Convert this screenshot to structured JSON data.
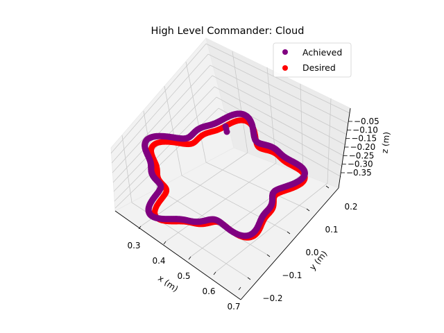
{
  "title": "High Level Commander: Cloud",
  "chart_data": {
    "type": "scatter",
    "projection": "3d",
    "title": "High Level Commander: Cloud",
    "xlabel": "x (m)",
    "ylabel": "y (m)",
    "zlabel": "z (m)",
    "xlim": [
      0.25,
      0.72
    ],
    "ylim": [
      -0.23,
      0.27
    ],
    "zlim": [
      -0.37,
      -0.03
    ],
    "x_ticks": [
      "0.3",
      "0.4",
      "0.5",
      "0.6",
      "0.7"
    ],
    "y_ticks": [
      "−0.2",
      "−0.1",
      "0.0",
      "0.1",
      "0.2"
    ],
    "z_ticks": [
      "−0.05",
      "−0.10",
      "−0.15",
      "−0.20",
      "−0.25",
      "−0.30",
      "−0.35"
    ],
    "grid": true,
    "legend_position": "top-right",
    "series": [
      {
        "name": "Achieved",
        "color": "#800080",
        "shape": "cloud-loop"
      },
      {
        "name": "Desired",
        "color": "#ff0000",
        "shape": "cloud-loop"
      }
    ]
  }
}
